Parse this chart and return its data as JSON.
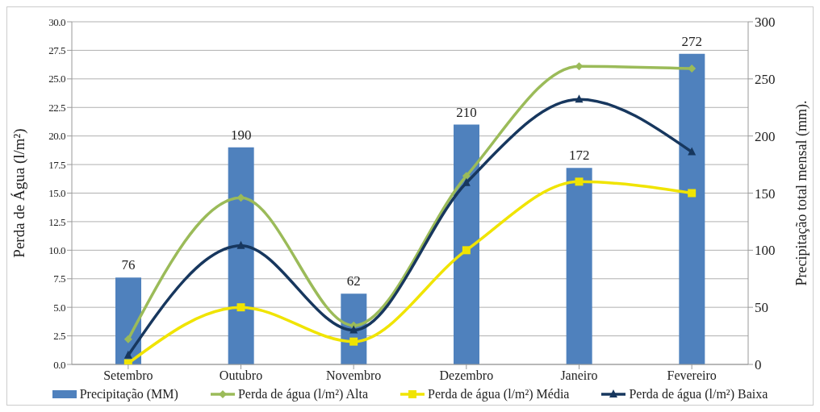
{
  "chart_data": {
    "type": "line",
    "ylabel": "Perda de Água  (l/m²)",
    "y2label": "Precipitação  total  mensal  (mm).",
    "categories": [
      "Setembro",
      "Outubro",
      "Novembro",
      "Dezembro",
      "Janeiro",
      "Fevereiro"
    ],
    "series": [
      {
        "name": "Precipitação (MM)",
        "type": "bar",
        "axis": "y2",
        "color": "#4f81bd",
        "values": [
          76,
          190,
          62,
          210,
          172,
          272
        ],
        "value_labels": [
          "76",
          "190",
          "62",
          "210",
          "172",
          "272"
        ]
      },
      {
        "name": "Perda de água (l/m²) Alta",
        "color": "#9bbb59",
        "marker": "diamond",
        "values": [
          2.2,
          14.6,
          3.4,
          16.5,
          26.1,
          25.9
        ]
      },
      {
        "name": "Perda de água (l/m²) Média",
        "color": "#f0e400",
        "marker": "square",
        "values": [
          0.1,
          5.0,
          2.0,
          10.0,
          16.0,
          15.0
        ]
      },
      {
        "name": "Perda de água (l/m²) Baixa",
        "color": "#17375e",
        "marker": "triangle",
        "values": [
          0.8,
          10.4,
          3.0,
          15.9,
          23.2,
          18.6
        ]
      }
    ],
    "ylim": [
      0,
      30
    ],
    "yticks": [
      {
        "value": 0,
        "label": "0.0"
      },
      {
        "value": 2.5,
        "label": "2.5"
      },
      {
        "value": 5,
        "label": "5.0"
      },
      {
        "value": 7.5,
        "label": "7.5"
      },
      {
        "value": 10,
        "label": "10.0"
      },
      {
        "value": 12.5,
        "label": "12.5"
      },
      {
        "value": 15,
        "label": "15.0"
      },
      {
        "value": 17.5,
        "label": "17.5"
      },
      {
        "value": 20,
        "label": "20.0"
      },
      {
        "value": 22.5,
        "label": "22.5"
      },
      {
        "value": 25,
        "label": "25.0"
      },
      {
        "value": 27.5,
        "label": "27.5"
      },
      {
        "value": 30,
        "label": "30.0"
      }
    ],
    "y2lim": [
      0,
      300
    ],
    "y2ticks": [
      0,
      50,
      100,
      150,
      200,
      250,
      300
    ],
    "grid": "y",
    "legend": "bottom"
  }
}
